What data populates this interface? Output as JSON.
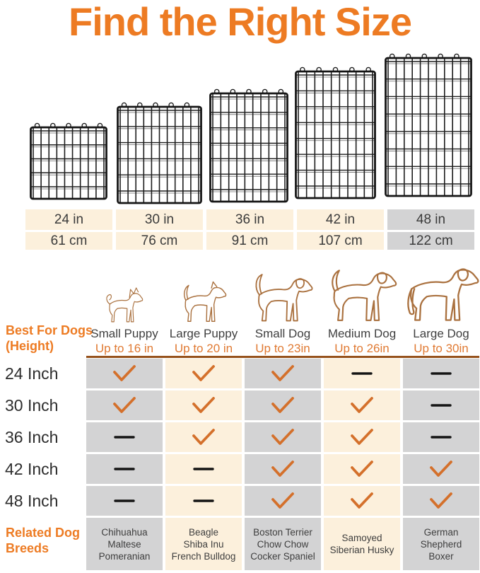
{
  "title": "Find the Right Size",
  "colors": {
    "accent": "#ed7b23",
    "accent2": "#e07a33",
    "cream": "#fcf0dc",
    "gray": "#d3d3d4",
    "divider": "#96521c",
    "check": "#d4702b",
    "dash": "#141414",
    "dog_line": "#aa713f",
    "wire": "#1d1d1d"
  },
  "size_table": {
    "inches": [
      "24 in",
      "30 in",
      "36 in",
      "42 in",
      "48 in"
    ],
    "cm": [
      "61 cm",
      "76 cm",
      "91 cm",
      "107 cm",
      "122 cm"
    ]
  },
  "columns": [
    {
      "dog": "Small Puppy",
      "height": "Up to 16 in",
      "icon": "chihuahua-outline-icon",
      "breeds": [
        "Chihuahua",
        "Maltese",
        "Pomeranian"
      ]
    },
    {
      "dog": "Large Puppy",
      "height": "Up to 20 in",
      "icon": "puppy-outline-icon",
      "breeds": [
        "Beagle",
        "Shiba Inu",
        "French Bulldog"
      ]
    },
    {
      "dog": "Small Dog",
      "height": "Up to 23in",
      "icon": "small-dog-outline-icon",
      "breeds": [
        "Boston Terrier",
        "Chow Chow",
        "Cocker Spaniel"
      ]
    },
    {
      "dog": "Medium Dog",
      "height": "Up to 26in",
      "icon": "medium-dog-outline-icon",
      "breeds": [
        "Samoyed",
        "Siberian Husky"
      ]
    },
    {
      "dog": "Large Dog",
      "height": "Up to 30in",
      "icon": "large-dog-outline-icon",
      "breeds": [
        "German",
        "Shepherd",
        "Boxer"
      ]
    }
  ],
  "row_header": {
    "best_for_line1": "Best For Dogs",
    "best_for_line2": "(Height)",
    "related_line1": "Related Dog",
    "related_line2": "Breeds"
  },
  "rows": [
    {
      "label": "24 Inch",
      "marks": [
        "check",
        "check",
        "check",
        "dash",
        "dash"
      ]
    },
    {
      "label": "30 Inch",
      "marks": [
        "check",
        "check",
        "check",
        "check",
        "dash"
      ]
    },
    {
      "label": "36 Inch",
      "marks": [
        "dash",
        "check",
        "check",
        "check",
        "dash"
      ]
    },
    {
      "label": "42 Inch",
      "marks": [
        "dash",
        "dash",
        "check",
        "check",
        "check"
      ]
    },
    {
      "label": "48 Inch",
      "marks": [
        "dash",
        "dash",
        "check",
        "check",
        "check"
      ]
    }
  ]
}
